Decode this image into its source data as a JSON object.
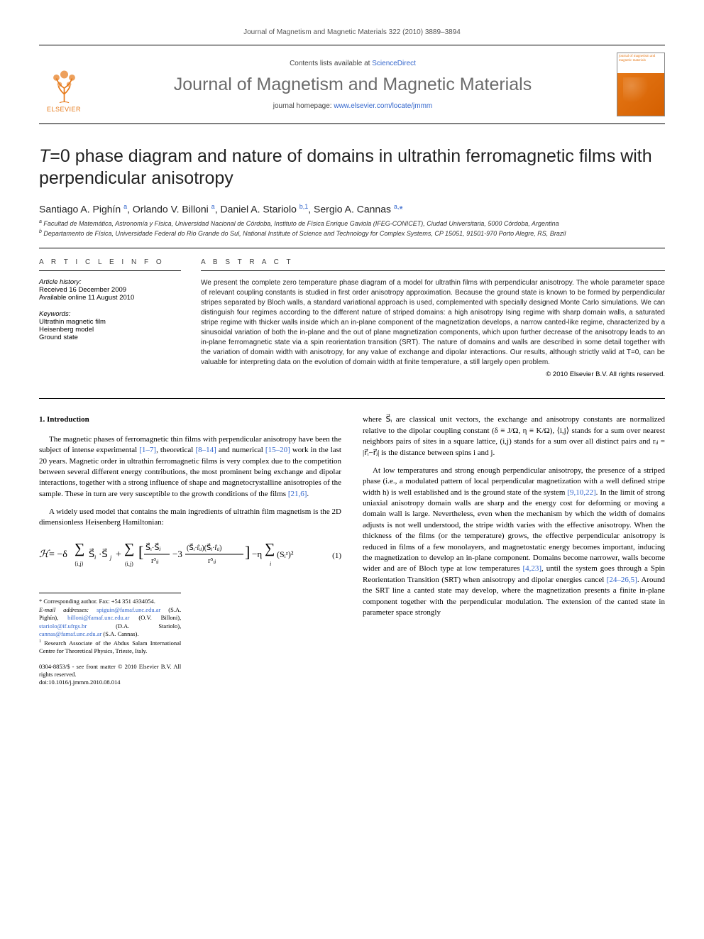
{
  "pageHeader": "Journal of Magnetism and Magnetic Materials 322 (2010) 3889–3894",
  "masthead": {
    "elsevier": "ELSEVIER",
    "contentsPrefix": "Contents lists available at ",
    "contentsLink": "ScienceDirect",
    "journalName": "Journal of Magnetism and Magnetic Materials",
    "homepagePrefix": "journal homepage: ",
    "homepageLink": "www.elsevier.com/locate/jmmm",
    "coverTop": "journal of magnetism and magnetic materials"
  },
  "title": "T=0 phase diagram and nature of domains in ultrathin ferromagnetic films with perpendicular anisotropy",
  "authorsHTML": "Santiago A. Pighín <sup class='sup'>a</sup>, Orlando V. Billoni <sup class='sup'>a</sup>, Daniel A. Stariolo <sup class='sup'>b,1</sup>, Sergio A. Cannas <sup class='sup'>a,</sup><span class='star'>*</span>",
  "affiliations": {
    "a": "Facultad de Matemática, Astronomía y Física, Universidad Nacional de Córdoba, Instituto de Física Enrique Gaviola (IFEG-CONICET), Ciudad Universitaria, 5000 Córdoba, Argentina",
    "b": "Departamento de Física, Universidade Federal do Rio Grande do Sul, National Institute of Science and Technology for Complex Systems, CP 15051, 91501-970 Porto Alegre, RS, Brazil"
  },
  "articleInfo": {
    "heading": "A R T I C L E   I N F O",
    "historyLabel": "Article history:",
    "received": "Received 16 December 2009",
    "online": "Available online 11 August 2010",
    "keywordsLabel": "Keywords:",
    "keywords": [
      "Ultrathin magnetic film",
      "Heisenberg model",
      "Ground state"
    ]
  },
  "abstract": {
    "heading": "A B S T R A C T",
    "text": "We present the complete zero temperature phase diagram of a model for ultrathin films with perpendicular anisotropy. The whole parameter space of relevant coupling constants is studied in first order anisotropy approximation. Because the ground state is known to be formed by perpendicular stripes separated by Bloch walls, a standard variational approach is used, complemented with specially designed Monte Carlo simulations. We can distinguish four regimes according to the different nature of striped domains: a high anisotropy Ising regime with sharp domain walls, a saturated stripe regime with thicker walls inside which an in-plane component of the magnetization develops, a narrow canted-like regime, characterized by a sinusoidal variation of both the in-plane and the out of plane magnetization components, which upon further decrease of the anisotropy leads to an in-plane ferromagnetic state via a spin reorientation transition (SRT). The nature of domains and walls are described in some detail together with the variation of domain width with anisotropy, for any value of exchange and dipolar interactions. Our results, although strictly valid at T=0, can be valuable for interpreting data on the evolution of domain width at finite temperature, a still largely open problem.",
    "copyright": "© 2010 Elsevier B.V. All rights reserved."
  },
  "section1": {
    "heading": "1.  Introduction",
    "p1a": "The magnetic phases of ferromagnetic thin films with perpendicular anisotropy have been the subject of intense experimental ",
    "r1": "[1–7]",
    "p1b": ", theoretical ",
    "r2": "[8–14]",
    "p1c": " and numerical ",
    "r3": "[15–20]",
    "p1d": " work in the last 20 years. Magnetic order in ultrathin ferromagnetic films is very complex due to the competition between several different energy contributions, the most prominent being exchange and dipolar interactions, together with a strong influence of shape and magnetocrystalline anisotropies of the sample. These in turn are very susceptible to the growth conditions of the films ",
    "r4": "[21,6]",
    "p1e": ".",
    "p2": "A widely used model that contains the main ingredients of ultrathin film magnetism is the 2D dimensionless Heisenberg Hamiltonian:",
    "eqnum": "(1)"
  },
  "col2": {
    "p1": "where S⃗ᵢ are classical unit vectors, the exchange and anisotropy constants are normalized relative to the dipolar coupling constant (δ ≡ J/Ω, η ≡ K/Ω), ⟨i,j⟩ stands for a sum over nearest neighbors pairs of sites in a square lattice, (i,j) stands for a sum over all distinct pairs and rᵢⱼ = |r⃗ᵢ−r⃗ⱼ| is the distance between spins i and j.",
    "p2a": "At low temperatures and strong enough perpendicular anisotropy, the presence of a striped phase (i.e., a modulated pattern of local perpendicular magnetization with a well defined stripe width h) is well established and is the ground state of the system ",
    "r5": "[9,10,22]",
    "p2b": ". In the limit of strong uniaxial anisotropy domain walls are sharp and the energy cost for deforming or moving a domain wall is large. Nevertheless, even when the mechanism by which the width of domains adjusts is not well understood, the stripe width varies with the effective anisotropy. When the thickness of the films (or the temperature) grows, the effective perpendicular anisotropy is reduced in films of a few monolayers, and magnetostatic energy becomes important, inducing the magnetization to develop an in-plane component. Domains become narrower, walls become wider and are of Bloch type at low temperatures ",
    "r6": "[4,23]",
    "p2c": ", until the system goes through a Spin Reorientation Transition (SRT) when anisotropy and dipolar energies cancel ",
    "r7": "[24–26,5]",
    "p2d": ". Around the SRT line a canted state may develop, where the magnetization presents a finite in-plane component together with the perpendicular modulation. The extension of the canted state in parameter space strongly"
  },
  "footnotes": {
    "corr": "Corresponding author. Fax: +54 351 4334054.",
    "emailLabel": "E-mail addresses:",
    "emails": "spiguin@famaf.unc.edu.ar (S.A. Pighín), billoni@famaf.unc.edu.ar (O.V. Billoni), stariolo@if.ufrgs.br (D.A. Stariolo), cannas@famaf.unc.edu.ar (S.A. Cannas).",
    "note1": "Research Associate of the Abdus Salam International Centre for Theoretical Physics, Trieste, Italy.",
    "doiLine1": "0304-8853/$ - see front matter © 2010 Elsevier B.V. All rights reserved.",
    "doiLine2": "doi:10.1016/j.jmmm.2010.08.014"
  },
  "colors": {
    "link": "#3366cc",
    "orange": "#e67817",
    "greyTitle": "#6b6b6b"
  }
}
